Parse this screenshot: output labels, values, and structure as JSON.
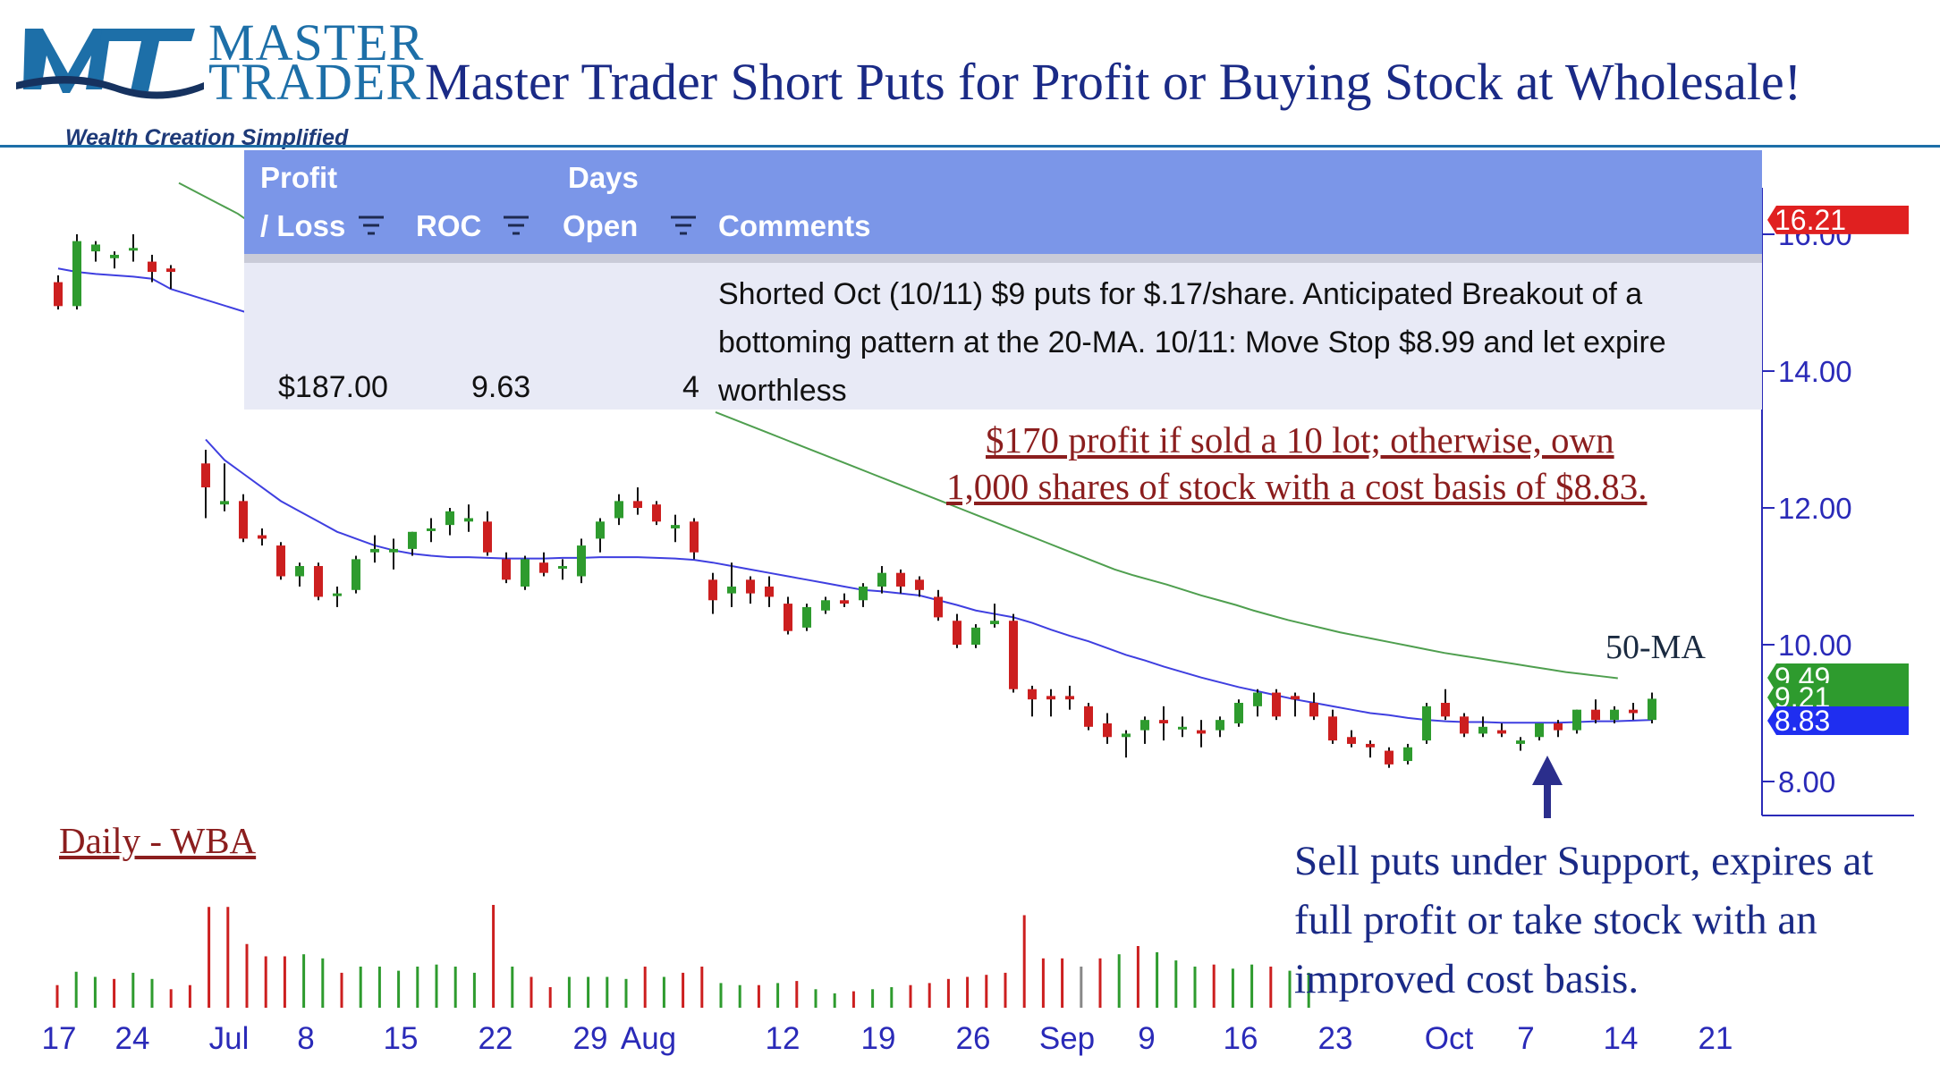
{
  "header": {
    "logo_word_1": "MASTER",
    "logo_word_2": "TRADER",
    "logo_tagline": "Wealth Creation Simplified",
    "title": "Master Trader Short Puts for Profit or Buying Stock at Wholesale!"
  },
  "trade_table": {
    "columns": [
      {
        "line1": "Profit",
        "line2": "/ Loss"
      },
      {
        "line1": "",
        "line2": "ROC"
      },
      {
        "line1": "Days",
        "line2": "Open"
      },
      {
        "line1": "",
        "line2": "Comments"
      }
    ],
    "row": {
      "profit_loss": "$187.00",
      "roc": "9.63",
      "days_open": "4",
      "comments": "Shorted Oct (10/11) $9 puts for $.17/share.  Anticipated Breakout of a bottoming pattern at the 20-MA.  10/11:  Move Stop $8.99 and let expire worthless"
    }
  },
  "annotations": {
    "profit_note_line1": "$170 profit if sold a 10 lot; otherwise, own",
    "profit_note_line2": "1,000 shares of stock with a cost basis of $8.83.",
    "ma_label": "50-MA",
    "chart_label": "Daily - WBA",
    "callout": "Sell puts under Support, expires at full profit or take stock with an improved cost basis."
  },
  "colors": {
    "up_candle": "#2e9b2e",
    "down_candle": "#cc1f1f",
    "ma20": "#3f3fe0",
    "ma50": "#4f9f4f",
    "axis": "#2a2ab8",
    "header_blue": "#7b96e8",
    "note_red": "#8b1e1e",
    "arrow": "#2b2e8c"
  },
  "chart_data": {
    "type": "candlestick",
    "ticker": "WBA",
    "x_tick_labels": [
      "17",
      "24",
      "Jul",
      "8",
      "15",
      "22",
      "29",
      "Aug",
      "12",
      "19",
      "26",
      "Sep",
      "9",
      "16",
      "23",
      "Oct",
      "7",
      "14",
      "21"
    ],
    "y_ticks": [
      8.0,
      10.0,
      12.0,
      14.0,
      16.0
    ],
    "y_tick_labels": [
      "8.00",
      "10.00",
      "12.00",
      "14.00",
      "16.00"
    ],
    "ylim": [
      7.5,
      16.8
    ],
    "price_tags": [
      {
        "label": "16.21",
        "value": 16.21,
        "color": "#e02020"
      },
      {
        "label": "9.49",
        "value": 9.49,
        "color": "#2e9b2e"
      },
      {
        "label": "9.21",
        "value": 9.21,
        "color": "#2e9b2e"
      },
      {
        "label": "8.83",
        "value": 8.83,
        "color": "#1f2ef0"
      }
    ],
    "candles": [
      {
        "o": 15.3,
        "h": 15.4,
        "l": 14.9,
        "c": 14.95
      },
      {
        "o": 14.95,
        "h": 16.0,
        "l": 14.9,
        "c": 15.9
      },
      {
        "o": 15.75,
        "h": 15.9,
        "l": 15.6,
        "c": 15.85
      },
      {
        "o": 15.65,
        "h": 15.75,
        "l": 15.5,
        "c": 15.7
      },
      {
        "o": 15.8,
        "h": 16.0,
        "l": 15.6,
        "c": 15.8
      },
      {
        "o": 15.6,
        "h": 15.7,
        "l": 15.3,
        "c": 15.45
      },
      {
        "o": 15.5,
        "h": 15.55,
        "l": 15.2,
        "c": 15.45
      },
      {
        "o": 12.65,
        "h": 12.85,
        "l": 11.85,
        "c": 12.3
      },
      {
        "o": 12.05,
        "h": 12.65,
        "l": 11.95,
        "c": 12.1
      },
      {
        "o": 12.1,
        "h": 12.2,
        "l": 11.5,
        "c": 11.55
      },
      {
        "o": 11.6,
        "h": 11.7,
        "l": 11.45,
        "c": 11.55
      },
      {
        "o": 11.45,
        "h": 11.5,
        "l": 10.95,
        "c": 11.0
      },
      {
        "o": 11.0,
        "h": 11.2,
        "l": 10.85,
        "c": 11.15
      },
      {
        "o": 11.15,
        "h": 11.2,
        "l": 10.65,
        "c": 10.7
      },
      {
        "o": 10.75,
        "h": 10.85,
        "l": 10.55,
        "c": 10.75
      },
      {
        "o": 10.8,
        "h": 11.3,
        "l": 10.75,
        "c": 11.25
      },
      {
        "o": 11.35,
        "h": 11.6,
        "l": 11.2,
        "c": 11.4
      },
      {
        "o": 11.35,
        "h": 11.55,
        "l": 11.1,
        "c": 11.4
      },
      {
        "o": 11.4,
        "h": 11.65,
        "l": 11.3,
        "c": 11.65
      },
      {
        "o": 11.7,
        "h": 11.85,
        "l": 11.5,
        "c": 11.7
      },
      {
        "o": 11.75,
        "h": 12.0,
        "l": 11.6,
        "c": 11.95
      },
      {
        "o": 11.8,
        "h": 12.05,
        "l": 11.65,
        "c": 11.85
      },
      {
        "o": 11.8,
        "h": 11.95,
        "l": 11.3,
        "c": 11.35
      },
      {
        "o": 11.25,
        "h": 11.35,
        "l": 10.9,
        "c": 10.95
      },
      {
        "o": 10.85,
        "h": 11.3,
        "l": 10.8,
        "c": 11.25
      },
      {
        "o": 11.2,
        "h": 11.35,
        "l": 11.0,
        "c": 11.05
      },
      {
        "o": 11.15,
        "h": 11.25,
        "l": 10.95,
        "c": 11.15
      },
      {
        "o": 11.0,
        "h": 11.55,
        "l": 10.9,
        "c": 11.45
      },
      {
        "o": 11.55,
        "h": 11.85,
        "l": 11.35,
        "c": 11.8
      },
      {
        "o": 11.85,
        "h": 12.2,
        "l": 11.75,
        "c": 12.1
      },
      {
        "o": 12.1,
        "h": 12.3,
        "l": 11.9,
        "c": 12.0
      },
      {
        "o": 12.05,
        "h": 12.1,
        "l": 11.75,
        "c": 11.8
      },
      {
        "o": 11.7,
        "h": 11.9,
        "l": 11.5,
        "c": 11.75
      },
      {
        "o": 11.8,
        "h": 11.85,
        "l": 11.25,
        "c": 11.35
      },
      {
        "o": 10.95,
        "h": 11.05,
        "l": 10.45,
        "c": 10.65
      },
      {
        "o": 10.75,
        "h": 11.2,
        "l": 10.55,
        "c": 10.85
      },
      {
        "o": 10.95,
        "h": 11.0,
        "l": 10.6,
        "c": 10.75
      },
      {
        "o": 10.85,
        "h": 11.0,
        "l": 10.55,
        "c": 10.7
      },
      {
        "o": 10.6,
        "h": 10.7,
        "l": 10.15,
        "c": 10.2
      },
      {
        "o": 10.25,
        "h": 10.6,
        "l": 10.2,
        "c": 10.55
      },
      {
        "o": 10.5,
        "h": 10.7,
        "l": 10.45,
        "c": 10.65
      },
      {
        "o": 10.65,
        "h": 10.75,
        "l": 10.55,
        "c": 10.6
      },
      {
        "o": 10.65,
        "h": 10.9,
        "l": 10.55,
        "c": 10.85
      },
      {
        "o": 10.85,
        "h": 11.15,
        "l": 10.75,
        "c": 11.05
      },
      {
        "o": 11.05,
        "h": 11.1,
        "l": 10.75,
        "c": 10.85
      },
      {
        "o": 10.95,
        "h": 11.0,
        "l": 10.7,
        "c": 10.8
      },
      {
        "o": 10.7,
        "h": 10.8,
        "l": 10.35,
        "c": 10.4
      },
      {
        "o": 10.35,
        "h": 10.45,
        "l": 9.95,
        "c": 10.0
      },
      {
        "o": 10.0,
        "h": 10.3,
        "l": 9.95,
        "c": 10.25
      },
      {
        "o": 10.3,
        "h": 10.6,
        "l": 10.25,
        "c": 10.35
      },
      {
        "o": 10.35,
        "h": 10.45,
        "l": 9.3,
        "c": 9.35
      },
      {
        "o": 9.35,
        "h": 9.4,
        "l": 8.95,
        "c": 9.2
      },
      {
        "o": 9.25,
        "h": 9.35,
        "l": 8.95,
        "c": 9.2
      },
      {
        "o": 9.25,
        "h": 9.4,
        "l": 9.05,
        "c": 9.2
      },
      {
        "o": 9.1,
        "h": 9.15,
        "l": 8.75,
        "c": 8.8
      },
      {
        "o": 8.85,
        "h": 9.0,
        "l": 8.55,
        "c": 8.65
      },
      {
        "o": 8.65,
        "h": 8.75,
        "l": 8.35,
        "c": 8.7
      },
      {
        "o": 8.75,
        "h": 8.95,
        "l": 8.55,
        "c": 8.9
      },
      {
        "o": 8.9,
        "h": 9.1,
        "l": 8.6,
        "c": 8.85
      },
      {
        "o": 8.8,
        "h": 8.95,
        "l": 8.65,
        "c": 8.8
      },
      {
        "o": 8.75,
        "h": 8.9,
        "l": 8.5,
        "c": 8.7
      },
      {
        "o": 8.75,
        "h": 8.95,
        "l": 8.65,
        "c": 8.9
      },
      {
        "o": 8.85,
        "h": 9.2,
        "l": 8.8,
        "c": 9.15
      },
      {
        "o": 9.1,
        "h": 9.35,
        "l": 8.95,
        "c": 9.3
      },
      {
        "o": 9.3,
        "h": 9.35,
        "l": 8.9,
        "c": 8.95
      },
      {
        "o": 9.25,
        "h": 9.3,
        "l": 8.95,
        "c": 9.2
      },
      {
        "o": 9.15,
        "h": 9.3,
        "l": 8.9,
        "c": 8.95
      },
      {
        "o": 8.95,
        "h": 9.05,
        "l": 8.55,
        "c": 8.6
      },
      {
        "o": 8.65,
        "h": 8.75,
        "l": 8.5,
        "c": 8.55
      },
      {
        "o": 8.55,
        "h": 8.6,
        "l": 8.35,
        "c": 8.5
      },
      {
        "o": 8.45,
        "h": 8.5,
        "l": 8.2,
        "c": 8.25
      },
      {
        "o": 8.3,
        "h": 8.55,
        "l": 8.25,
        "c": 8.5
      },
      {
        "o": 8.6,
        "h": 9.15,
        "l": 8.55,
        "c": 9.1
      },
      {
        "o": 9.15,
        "h": 9.35,
        "l": 8.9,
        "c": 8.95
      },
      {
        "o": 8.95,
        "h": 9.0,
        "l": 8.65,
        "c": 8.7
      },
      {
        "o": 8.7,
        "h": 8.95,
        "l": 8.65,
        "c": 8.8
      },
      {
        "o": 8.75,
        "h": 8.85,
        "l": 8.65,
        "c": 8.7
      },
      {
        "o": 8.55,
        "h": 8.65,
        "l": 8.45,
        "c": 8.6
      },
      {
        "o": 8.65,
        "h": 8.85,
        "l": 8.6,
        "c": 8.85
      },
      {
        "o": 8.85,
        "h": 8.9,
        "l": 8.65,
        "c": 8.75
      },
      {
        "o": 8.75,
        "h": 9.05,
        "l": 8.7,
        "c": 9.05
      },
      {
        "o": 9.05,
        "h": 9.2,
        "l": 8.85,
        "c": 8.9
      },
      {
        "o": 8.9,
        "h": 9.1,
        "l": 8.85,
        "c": 9.05
      },
      {
        "o": 9.05,
        "h": 9.15,
        "l": 8.9,
        "c": 9.0
      },
      {
        "o": 8.9,
        "h": 9.3,
        "l": 8.85,
        "c": 9.21
      }
    ],
    "ma20": [
      15.5,
      15.45,
      15.42,
      15.4,
      15.38,
      15.35,
      15.2,
      13.0,
      12.7,
      12.5,
      12.3,
      12.1,
      11.95,
      11.8,
      11.65,
      11.55,
      11.45,
      11.38,
      11.33,
      11.3,
      11.28,
      11.28,
      11.27,
      11.26,
      11.26,
      11.26,
      11.27,
      11.27,
      11.28,
      11.28,
      11.28,
      11.27,
      11.26,
      11.24,
      11.2,
      11.15,
      11.1,
      11.05,
      11.0,
      10.95,
      10.9,
      10.85,
      10.8,
      10.78,
      10.75,
      10.72,
      10.65,
      10.58,
      10.5,
      10.45,
      10.4,
      10.32,
      10.22,
      10.13,
      10.05,
      9.95,
      9.85,
      9.77,
      9.68,
      9.6,
      9.52,
      9.45,
      9.38,
      9.32,
      9.26,
      9.2,
      9.15,
      9.1,
      9.05,
      9.0,
      8.97,
      8.93,
      8.9,
      8.88,
      8.87,
      8.87,
      8.86,
      8.86,
      8.86,
      8.86,
      8.87,
      8.88,
      8.88,
      8.89,
      8.9
    ],
    "ma50": [
      16.75,
      16.6,
      16.45,
      16.3,
      16.1,
      15.95,
      15.8,
      13.4,
      13.3,
      13.2,
      13.1,
      13.0,
      12.9,
      12.8,
      12.7,
      12.6,
      12.5,
      12.4,
      12.3,
      12.2,
      12.1,
      12.0,
      11.9,
      11.8,
      11.7,
      11.6,
      11.5,
      11.4,
      11.3,
      11.2,
      11.1,
      11.02,
      10.95,
      10.88,
      10.8,
      10.72,
      10.65,
      10.58,
      10.5,
      10.43,
      10.36,
      10.3,
      10.24,
      10.18,
      10.13,
      10.08,
      10.03,
      9.98,
      9.93,
      9.88,
      9.84,
      9.8,
      9.76,
      9.72,
      9.68,
      9.64,
      9.6,
      9.57,
      9.54,
      9.51
    ],
    "volume": [
      {
        "v": 22,
        "d": "down"
      },
      {
        "v": 35,
        "d": "up"
      },
      {
        "v": 30,
        "d": "up"
      },
      {
        "v": 28,
        "d": "down"
      },
      {
        "v": 34,
        "d": "up"
      },
      {
        "v": 28,
        "d": "up"
      },
      {
        "v": 18,
        "d": "down"
      },
      {
        "v": 22,
        "d": "down"
      },
      {
        "v": 98,
        "d": "down"
      },
      {
        "v": 98,
        "d": "down"
      },
      {
        "v": 62,
        "d": "down"
      },
      {
        "v": 50,
        "d": "down"
      },
      {
        "v": 50,
        "d": "down"
      },
      {
        "v": 52,
        "d": "up"
      },
      {
        "v": 48,
        "d": "up"
      },
      {
        "v": 34,
        "d": "down"
      },
      {
        "v": 40,
        "d": "up"
      },
      {
        "v": 40,
        "d": "up"
      },
      {
        "v": 36,
        "d": "up"
      },
      {
        "v": 40,
        "d": "up"
      },
      {
        "v": 42,
        "d": "up"
      },
      {
        "v": 40,
        "d": "up"
      },
      {
        "v": 34,
        "d": "up"
      },
      {
        "v": 100,
        "d": "down"
      },
      {
        "v": 40,
        "d": "up"
      },
      {
        "v": 30,
        "d": "down"
      },
      {
        "v": 20,
        "d": "down"
      },
      {
        "v": 30,
        "d": "up"
      },
      {
        "v": 30,
        "d": "up"
      },
      {
        "v": 30,
        "d": "up"
      },
      {
        "v": 28,
        "d": "up"
      },
      {
        "v": 40,
        "d": "down"
      },
      {
        "v": 30,
        "d": "up"
      },
      {
        "v": 34,
        "d": "down"
      },
      {
        "v": 40,
        "d": "down"
      },
      {
        "v": 24,
        "d": "up"
      },
      {
        "v": 22,
        "d": "up"
      },
      {
        "v": 22,
        "d": "down"
      },
      {
        "v": 24,
        "d": "up"
      },
      {
        "v": 26,
        "d": "down"
      },
      {
        "v": 18,
        "d": "up"
      },
      {
        "v": 14,
        "d": "up"
      },
      {
        "v": 16,
        "d": "down"
      },
      {
        "v": 18,
        "d": "up"
      },
      {
        "v": 20,
        "d": "up"
      },
      {
        "v": 22,
        "d": "down"
      },
      {
        "v": 24,
        "d": "down"
      },
      {
        "v": 28,
        "d": "down"
      },
      {
        "v": 30,
        "d": "down"
      },
      {
        "v": 32,
        "d": "down"
      },
      {
        "v": 34,
        "d": "down"
      },
      {
        "v": 90,
        "d": "down"
      },
      {
        "v": 48,
        "d": "down"
      },
      {
        "v": 48,
        "d": "down"
      },
      {
        "v": 40,
        "d": "gray"
      },
      {
        "v": 48,
        "d": "down"
      },
      {
        "v": 52,
        "d": "up"
      },
      {
        "v": 60,
        "d": "down"
      },
      {
        "v": 54,
        "d": "up"
      },
      {
        "v": 46,
        "d": "up"
      },
      {
        "v": 40,
        "d": "up"
      },
      {
        "v": 42,
        "d": "down"
      },
      {
        "v": 38,
        "d": "up"
      },
      {
        "v": 42,
        "d": "up"
      },
      {
        "v": 40,
        "d": "down"
      },
      {
        "v": 36,
        "d": "up"
      },
      {
        "v": 34,
        "d": "up"
      }
    ]
  }
}
